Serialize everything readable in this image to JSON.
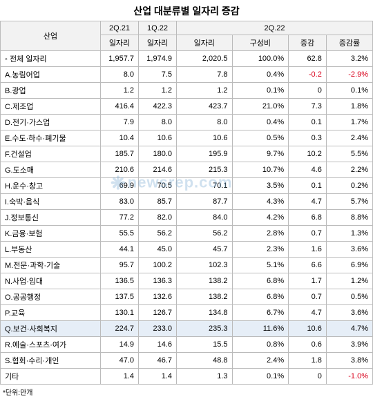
{
  "title": "산업 대분류별 일자리 증감",
  "watermark": "newsrep.com",
  "headers": {
    "industry": "산업",
    "q21": "2Q.21",
    "q22_1": "1Q.22",
    "q22_2": "2Q.22",
    "sub_jobs": "일자리",
    "sub_share": "구성비",
    "sub_change": "증감",
    "sub_rate": "증감률"
  },
  "footnote": "*단위:만개",
  "colors": {
    "header_bg": "#f2f2f2",
    "border": "#bbbbbb",
    "negative": "#d9001b",
    "highlight_row": "#e6eef7",
    "background": "#ffffff"
  },
  "rows": [
    {
      "label": "◦ 전체 일자리",
      "v1": "1,957.7",
      "v2": "1,974.9",
      "v3": "2,020.5",
      "share": "100.0%",
      "chg": "62.8",
      "rate": "3.2%",
      "total": true
    },
    {
      "label": "A.농림어업",
      "v1": "8.0",
      "v2": "7.5",
      "v3": "7.8",
      "share": "0.4%",
      "chg": "-0.2",
      "rate": "-2.9%",
      "neg_chg": true,
      "neg_rate": true
    },
    {
      "label": "B.광업",
      "v1": "1.2",
      "v2": "1.2",
      "v3": "1.2",
      "share": "0.1%",
      "chg": "0",
      "rate": "0.1%"
    },
    {
      "label": "C.제조업",
      "v1": "416.4",
      "v2": "422.3",
      "v3": "423.7",
      "share": "21.0%",
      "chg": "7.3",
      "rate": "1.8%"
    },
    {
      "label": "D.전기·가스업",
      "v1": "7.9",
      "v2": "8.0",
      "v3": "8.0",
      "share": "0.4%",
      "chg": "0.1",
      "rate": "1.7%"
    },
    {
      "label": "E.수도·하수·폐기물",
      "v1": "10.4",
      "v2": "10.6",
      "v3": "10.6",
      "share": "0.5%",
      "chg": "0.3",
      "rate": "2.4%"
    },
    {
      "label": "F.건설업",
      "v1": "185.7",
      "v2": "180.0",
      "v3": "195.9",
      "share": "9.7%",
      "chg": "10.2",
      "rate": "5.5%"
    },
    {
      "label": "G.도소매",
      "v1": "210.6",
      "v2": "214.6",
      "v3": "215.3",
      "share": "10.7%",
      "chg": "4.6",
      "rate": "2.2%"
    },
    {
      "label": "H.운수·창고",
      "v1": "69.9",
      "v2": "70.5",
      "v3": "70.1",
      "share": "3.5%",
      "chg": "0.1",
      "rate": "0.2%"
    },
    {
      "label": "I.숙박·음식",
      "v1": "83.0",
      "v2": "85.7",
      "v3": "87.7",
      "share": "4.3%",
      "chg": "4.7",
      "rate": "5.7%"
    },
    {
      "label": "J.정보통신",
      "v1": "77.2",
      "v2": "82.0",
      "v3": "84.0",
      "share": "4.2%",
      "chg": "6.8",
      "rate": "8.8%"
    },
    {
      "label": "K.금융·보험",
      "v1": "55.5",
      "v2": "56.2",
      "v3": "56.2",
      "share": "2.8%",
      "chg": "0.7",
      "rate": "1.3%"
    },
    {
      "label": "L.부동산",
      "v1": "44.1",
      "v2": "45.0",
      "v3": "45.7",
      "share": "2.3%",
      "chg": "1.6",
      "rate": "3.6%"
    },
    {
      "label": "M.전문·과학·기술",
      "v1": "95.7",
      "v2": "100.2",
      "v3": "102.3",
      "share": "5.1%",
      "chg": "6.6",
      "rate": "6.9%"
    },
    {
      "label": "N.사업·임대",
      "v1": "136.5",
      "v2": "136.3",
      "v3": "138.2",
      "share": "6.8%",
      "chg": "1.7",
      "rate": "1.2%"
    },
    {
      "label": "O.공공행정",
      "v1": "137.5",
      "v2": "132.6",
      "v3": "138.2",
      "share": "6.8%",
      "chg": "0.7",
      "rate": "0.5%"
    },
    {
      "label": "P.교육",
      "v1": "130.1",
      "v2": "126.7",
      "v3": "134.8",
      "share": "6.7%",
      "chg": "4.7",
      "rate": "3.6%"
    },
    {
      "label": "Q.보건·사회복지",
      "v1": "224.7",
      "v2": "233.0",
      "v3": "235.3",
      "share": "11.6%",
      "chg": "10.6",
      "rate": "4.7%",
      "highlight": true
    },
    {
      "label": "R.예술·스포츠·여가",
      "v1": "14.9",
      "v2": "14.6",
      "v3": "15.5",
      "share": "0.8%",
      "chg": "0.6",
      "rate": "3.9%"
    },
    {
      "label": "S.협회·수리·개인",
      "v1": "47.0",
      "v2": "46.7",
      "v3": "48.8",
      "share": "2.4%",
      "chg": "1.8",
      "rate": "3.8%"
    },
    {
      "label": "기타",
      "v1": "1.4",
      "v2": "1.4",
      "v3": "1.3",
      "share": "0.1%",
      "chg": "0",
      "rate": "-1.0%",
      "neg_rate": true
    }
  ]
}
